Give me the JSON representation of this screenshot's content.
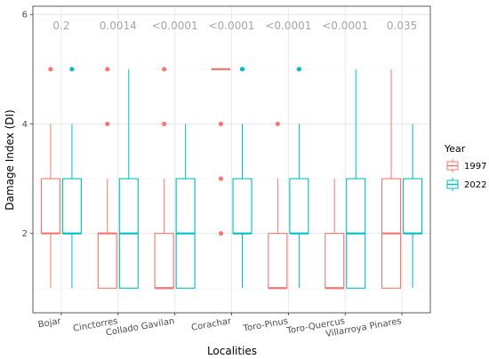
{
  "chart_data": {
    "type": "box",
    "xlabel": "Localities",
    "ylabel": "Damage Index (DI)",
    "categories": [
      "Bojar",
      "Cinctorres",
      "Collado Gavilan",
      "Corachar",
      "Toro-Pinus",
      "Toro-Quercus",
      "Villarroya Pinares"
    ],
    "y_ticks": [
      "2",
      "4",
      "6"
    ],
    "ylim": [
      0.55,
      6.15
    ],
    "grid": true,
    "legend": {
      "title": "Year",
      "placement": "right",
      "items": [
        {
          "label": "1997",
          "color": "#F8766D"
        },
        {
          "label": "2022",
          "color": "#00BFC4"
        }
      ]
    },
    "p_values": [
      "0.2",
      "0.0014",
      "<0.0001",
      "<0.0001",
      "<0.0001",
      "<0.0001",
      "0.035"
    ],
    "series": [
      {
        "name": "1997",
        "color": "#F8766D",
        "boxes": [
          {
            "category": "Bojar",
            "whisker_low": 1,
            "q1": 2,
            "median": 2,
            "q3": 3,
            "whisker_high": 4,
            "outliers": [
              5
            ]
          },
          {
            "category": "Cinctorres",
            "whisker_low": 1,
            "q1": 1,
            "median": 2,
            "q3": 2,
            "whisker_high": 3,
            "outliers": [
              4,
              5
            ]
          },
          {
            "category": "Collado Gavilan",
            "whisker_low": 1,
            "q1": 1,
            "median": 1,
            "q3": 2,
            "whisker_high": 3,
            "outliers": [
              4,
              5
            ]
          },
          {
            "category": "Corachar",
            "whisker_low": 5,
            "q1": 5,
            "median": 5,
            "q3": 5,
            "whisker_high": 5,
            "outliers": [
              2,
              3,
              4
            ]
          },
          {
            "category": "Toro-Pinus",
            "whisker_low": 1,
            "q1": 1,
            "median": 1,
            "q3": 2,
            "whisker_high": 3,
            "outliers": [
              4
            ]
          },
          {
            "category": "Toro-Quercus",
            "whisker_low": 1,
            "q1": 1,
            "median": 1,
            "q3": 2,
            "whisker_high": 3,
            "outliers": []
          },
          {
            "category": "Villarroya Pinares",
            "whisker_low": 1,
            "q1": 1,
            "median": 2,
            "q3": 3,
            "whisker_high": 5,
            "outliers": []
          }
        ]
      },
      {
        "name": "2022",
        "color": "#00BFC4",
        "boxes": [
          {
            "category": "Bojar",
            "whisker_low": 1,
            "q1": 2,
            "median": 2,
            "q3": 3,
            "whisker_high": 4,
            "outliers": [
              5
            ]
          },
          {
            "category": "Cinctorres",
            "whisker_low": 1,
            "q1": 1,
            "median": 2,
            "q3": 3,
            "whisker_high": 5,
            "outliers": []
          },
          {
            "category": "Collado Gavilan",
            "whisker_low": 1,
            "q1": 1,
            "median": 2,
            "q3": 3,
            "whisker_high": 4,
            "outliers": []
          },
          {
            "category": "Corachar",
            "whisker_low": 1,
            "q1": 2,
            "median": 2,
            "q3": 3,
            "whisker_high": 4,
            "outliers": [
              5
            ]
          },
          {
            "category": "Toro-Pinus",
            "whisker_low": 1,
            "q1": 2,
            "median": 2,
            "q3": 3,
            "whisker_high": 4,
            "outliers": [
              5
            ]
          },
          {
            "category": "Toro-Quercus",
            "whisker_low": 1,
            "q1": 1,
            "median": 2,
            "q3": 3,
            "whisker_high": 5,
            "outliers": []
          },
          {
            "category": "Villarroya Pinares",
            "whisker_low": 1,
            "q1": 2,
            "median": 2,
            "q3": 3,
            "whisker_high": 4,
            "outliers": []
          }
        ]
      }
    ]
  }
}
